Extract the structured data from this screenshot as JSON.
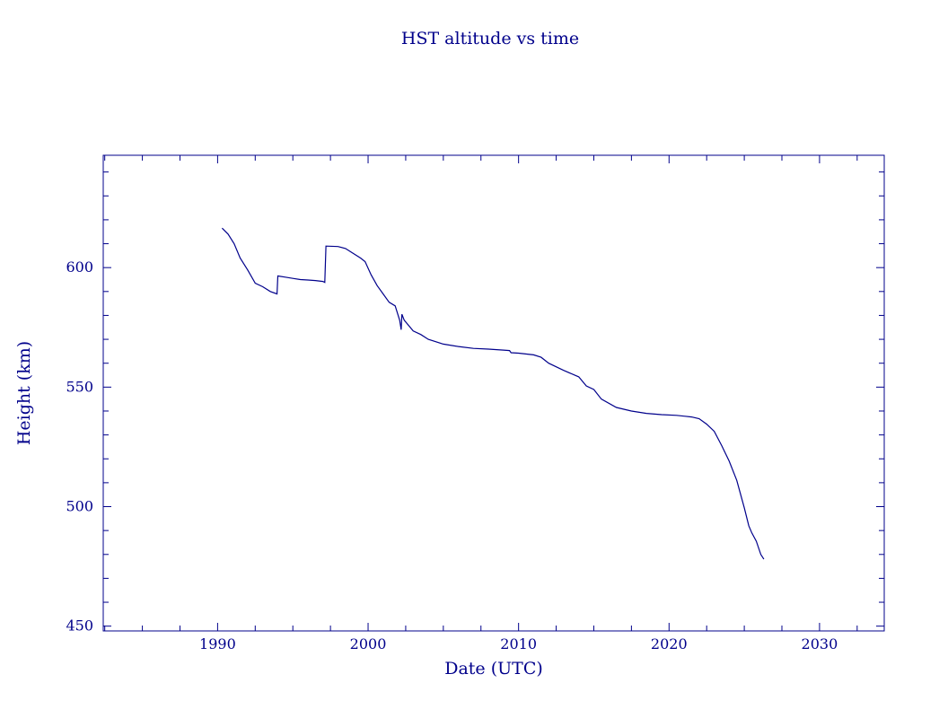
{
  "colors": {
    "ink": "#00008b",
    "background": "#ffffff"
  },
  "chart_data": {
    "type": "line",
    "title": "HST altitude vs time",
    "xlabel": "Date (UTC)",
    "ylabel": "Height (km)",
    "xlim": [
      1982.4,
      2034.3
    ],
    "ylim": [
      448,
      647
    ],
    "x_ticks": [
      1990,
      2000,
      2010,
      2020,
      2030
    ],
    "y_ticks": [
      450,
      500,
      550,
      600
    ],
    "x_minor_step": 2.5,
    "y_minor_step": 10,
    "grid": false,
    "legend": "none",
    "series": [
      {
        "x": [
          1990.3,
          1990.7,
          1991.1,
          1991.5,
          1992.0,
          1992.5,
          1993.0,
          1993.5,
          1993.95,
          1994.0,
          1994.5,
          1995.0,
          1995.5,
          1996.0,
          1996.5,
          1997.0,
          1997.12,
          1997.2,
          1998.0,
          1998.5,
          1999.0,
          1999.5,
          1999.8,
          2000.2,
          2000.6,
          2001.0,
          2001.4,
          2001.8,
          2002.1,
          2002.2,
          2002.25,
          2002.4,
          2003.0,
          2003.5,
          2004.0,
          2005.0,
          2006.0,
          2007.0,
          2008.0,
          2009.0,
          2009.4,
          2009.5,
          2010.0,
          2011.0,
          2011.5,
          2012.0,
          2013.0,
          2014.0,
          2014.5,
          2015.0,
          2015.5,
          2016.5,
          2017.5,
          2018.5,
          2019.5,
          2020.5,
          2021.5,
          2022.0,
          2022.5,
          2023.0,
          2023.5,
          2024.0,
          2024.5,
          2025.0,
          2025.3,
          2025.5,
          2025.8,
          2026.1,
          2026.3
        ],
        "y": [
          616.5,
          614,
          610,
          604,
          599,
          593.5,
          592,
          590,
          589,
          596.5,
          596,
          595.5,
          595,
          594.8,
          594.6,
          594.2,
          593.8,
          609,
          608.8,
          608,
          606,
          604,
          602.5,
          597,
          592.5,
          589,
          585.5,
          584,
          578,
          574,
          580.5,
          578,
          573.5,
          572,
          570,
          568,
          567,
          566.2,
          565.9,
          565.5,
          565.3,
          564.4,
          564.2,
          563.5,
          562.5,
          560,
          557,
          554.3,
          550.5,
          549,
          545,
          541.5,
          540,
          539,
          538.5,
          538.2,
          537.5,
          536.8,
          534.5,
          531.5,
          525.5,
          519,
          511,
          499.5,
          492,
          489,
          485.5,
          480,
          478
        ]
      }
    ]
  }
}
